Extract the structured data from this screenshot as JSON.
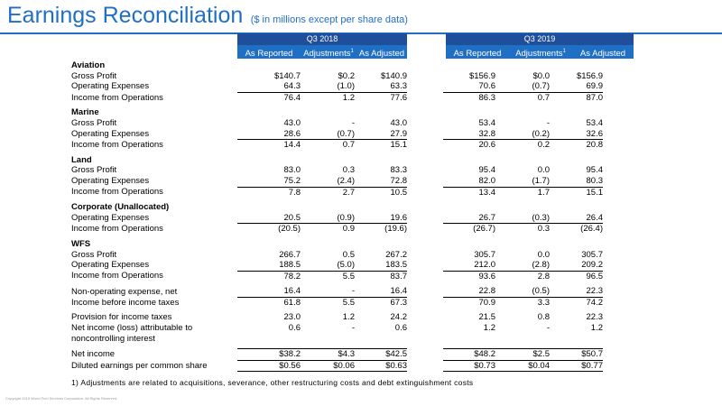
{
  "title": "Earnings Reconciliation",
  "subtitle": "($ in millions except per share data)",
  "groups": [
    "Q3 2018",
    "Q3 2019"
  ],
  "columns": [
    "As Reported",
    "Adjustments",
    "As Adjusted"
  ],
  "footnote_marker": "1",
  "rows": [
    {
      "type": "section",
      "label": "Aviation"
    },
    {
      "type": "row",
      "label": "Gross Profit",
      "v": [
        "$140.7",
        "$0.2",
        "$140.9",
        "$156.9",
        "$0.0",
        "$156.9"
      ]
    },
    {
      "type": "row",
      "label": "Operating Expenses",
      "v": [
        "64.3",
        "(1.0)",
        "63.3",
        "70.6",
        "(0.7)",
        "69.9"
      ],
      "under": true
    },
    {
      "type": "row",
      "label": "Income from Operations",
      "v": [
        "76.4",
        "1.2",
        "77.6",
        "86.3",
        "0.7",
        "87.0"
      ]
    },
    {
      "type": "spacer"
    },
    {
      "type": "section",
      "label": "Marine"
    },
    {
      "type": "row",
      "label": "Gross Profit",
      "v": [
        "43.0",
        "-",
        "43.0",
        "53.4",
        "-",
        "53.4"
      ]
    },
    {
      "type": "row",
      "label": "Operating Expenses",
      "v": [
        "28.6",
        "(0.7)",
        "27.9",
        "32.8",
        "(0.2)",
        "32.6"
      ],
      "under": true
    },
    {
      "type": "row",
      "label": "Income from Operations",
      "v": [
        "14.4",
        "0.7",
        "15.1",
        "20.6",
        "0.2",
        "20.8"
      ]
    },
    {
      "type": "spacer"
    },
    {
      "type": "section",
      "label": "Land"
    },
    {
      "type": "row",
      "label": "Gross Profit",
      "v": [
        "83.0",
        "0.3",
        "83.3",
        "95.4",
        "0.0",
        "95.4"
      ]
    },
    {
      "type": "row",
      "label": "Operating Expenses",
      "v": [
        "75.2",
        "(2.4)",
        "72.8",
        "82.0",
        "(1.7)",
        "80.3"
      ],
      "under": true
    },
    {
      "type": "row",
      "label": "Income from Operations",
      "v": [
        "7.8",
        "2.7",
        "10.5",
        "13.4",
        "1.7",
        "15.1"
      ]
    },
    {
      "type": "spacer"
    },
    {
      "type": "section",
      "label": "Corporate (Unallocated)"
    },
    {
      "type": "row",
      "label": "Operating Expenses",
      "v": [
        "20.5",
        "(0.9)",
        "19.6",
        "26.7",
        "(0.3)",
        "26.4"
      ],
      "under": true
    },
    {
      "type": "row",
      "label": "Income from Operations",
      "v": [
        "(20.5)",
        "0.9",
        "(19.6)",
        "(26.7)",
        "0.3",
        "(26.4)"
      ]
    },
    {
      "type": "spacer"
    },
    {
      "type": "section",
      "label": "WFS"
    },
    {
      "type": "row",
      "label": "Gross Profit",
      "v": [
        "266.7",
        "0.5",
        "267.2",
        "305.7",
        "0.0",
        "305.7"
      ]
    },
    {
      "type": "row",
      "label": "Operating Expenses",
      "v": [
        "188.5",
        "(5.0)",
        "183.5",
        "212.0",
        "(2.8)",
        "209.2"
      ],
      "under": true
    },
    {
      "type": "row",
      "label": "Income from Operations",
      "v": [
        "78.2",
        "5.5",
        "83.7",
        "93.6",
        "2.8",
        "96.5"
      ]
    },
    {
      "type": "spacer"
    },
    {
      "type": "row",
      "label": "Non-operating expense, net",
      "v": [
        "16.4",
        "-",
        "16.4",
        "22.8",
        "(0.5)",
        "22.3"
      ],
      "under": true
    },
    {
      "type": "row",
      "label": "Income before income taxes",
      "v": [
        "61.8",
        "5.5",
        "67.3",
        "70.9",
        "3.3",
        "74.2"
      ]
    },
    {
      "type": "spacer"
    },
    {
      "type": "row",
      "label": "Provision for income taxes",
      "v": [
        "23.0",
        "1.2",
        "24.2",
        "21.5",
        "0.8",
        "22.3"
      ]
    },
    {
      "type": "row",
      "label": "Net income (loss) attributable to",
      "label2": "noncontrolling interest",
      "v": [
        "0.6",
        "-",
        "0.6",
        "1.2",
        "-",
        "1.2"
      ],
      "tall": true
    },
    {
      "type": "spacer"
    },
    {
      "type": "row",
      "label": "Net income",
      "v": [
        "$38.2",
        "$4.3",
        "$42.5",
        "$48.2",
        "$2.5",
        "$50.7"
      ],
      "total": true
    },
    {
      "type": "row",
      "label": "Diluted earnings per common share",
      "v": [
        "$0.56",
        "$0.06",
        "$0.63",
        "$0.73",
        "$0.04",
        "$0.77"
      ],
      "diluted": true
    }
  ],
  "footnote": "1) Adjustments are related to acquisitions, severance, other restructuring costs and debt extinguishment costs",
  "copyright": "Copyright 2019 World Fuel Services Corporation. All Rights Reserved.",
  "colors": {
    "accent": "#1f6fc5",
    "header_dark": "#1f4f9b"
  }
}
